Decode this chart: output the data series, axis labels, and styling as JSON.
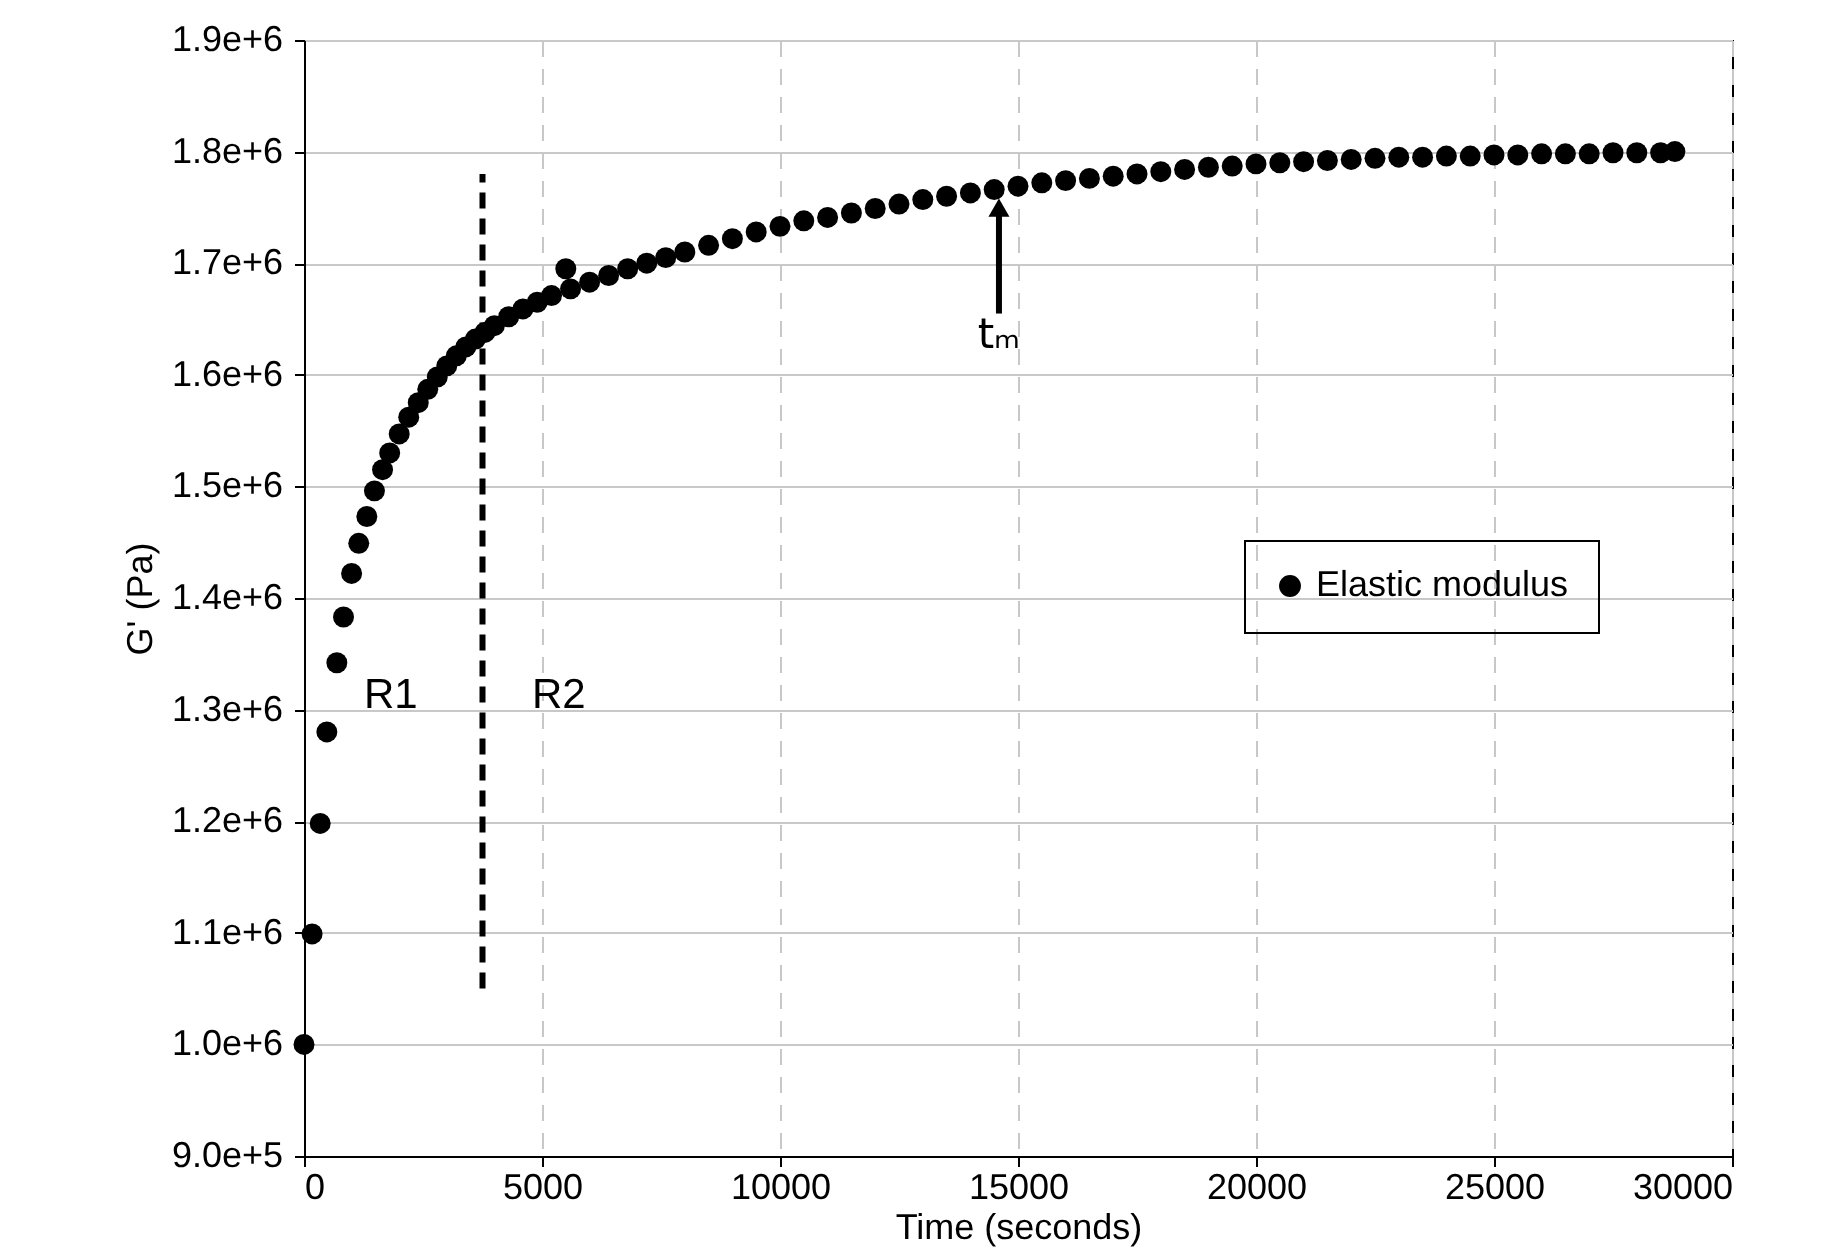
{
  "chart_data": {
    "type": "scatter",
    "xlabel": "Time (seconds)",
    "ylabel": "G' (Pa)",
    "xlim": [
      0,
      30000
    ],
    "xticks": [
      0,
      5000,
      10000,
      15000,
      20000,
      25000,
      30000
    ],
    "ylim": [
      900000,
      1900000
    ],
    "yticks": [
      {
        "value": 900000,
        "label": "9.0e+5"
      },
      {
        "value": 1000000,
        "label": "1.0e+6"
      },
      {
        "value": 1100000,
        "label": "1.1e+6"
      },
      {
        "value": 1200000,
        "label": "1.2e+6"
      },
      {
        "value": 1300000,
        "label": "1.3e+6"
      },
      {
        "value": 1400000,
        "label": "1.4e+6"
      },
      {
        "value": 1500000,
        "label": "1.5e+6"
      },
      {
        "value": 1600000,
        "label": "1.6e+6"
      },
      {
        "value": 1700000,
        "label": "1.7e+6"
      },
      {
        "value": 1800000,
        "label": "1.8e+6"
      },
      {
        "value": 1900000,
        "label": "1.9e+6"
      }
    ],
    "grid": true,
    "legend": "right",
    "series": [
      {
        "name": "Elastic modulus",
        "color": "#000000",
        "marker": "circle",
        "x": [
          0,
          170,
          340,
          480,
          690,
          830,
          1000,
          1150,
          1320,
          1480,
          1650,
          1800,
          2000,
          2200,
          2400,
          2600,
          2800,
          3000,
          3200,
          3400,
          3600,
          3800,
          4000,
          4300,
          4600,
          4900,
          5200,
          5500,
          5600,
          6000,
          6400,
          6800,
          7200,
          7600,
          8000,
          8500,
          9000,
          9500,
          10000,
          10500,
          11000,
          11500,
          12000,
          12500,
          13000,
          13500,
          14000,
          14500,
          15000,
          15500,
          16000,
          16500,
          17000,
          17500,
          18000,
          18500,
          19000,
          19500,
          20000,
          20500,
          21000,
          21500,
          22000,
          22500,
          23000,
          23500,
          24000,
          24500,
          25000,
          25500,
          26000,
          26500,
          27000,
          27500,
          28000,
          28500,
          28800
        ],
        "values": [
          1000000,
          1099000,
          1198000,
          1280000,
          1342000,
          1383000,
          1422000,
          1449000,
          1473000,
          1496000,
          1515000,
          1530000,
          1547000,
          1562000,
          1575000,
          1587000,
          1598000,
          1608000,
          1617000,
          1625000,
          1632000,
          1638000,
          1644000,
          1652000,
          1659000,
          1665000,
          1671000,
          1695000,
          1677000,
          1683000,
          1689000,
          1695000,
          1700000,
          1705000,
          1710000,
          1716000,
          1722000,
          1728000,
          1733000,
          1738000,
          1741000,
          1745000,
          1749000,
          1753000,
          1757000,
          1760000,
          1763000,
          1766000,
          1769000,
          1772000,
          1774000,
          1776000,
          1778000,
          1780000,
          1782000,
          1784000,
          1786000,
          1787000,
          1789000,
          1790000,
          1791000,
          1792000,
          1793000,
          1794000,
          1795000,
          1795000,
          1796000,
          1796000,
          1797000,
          1797000,
          1798000,
          1798000,
          1798000,
          1799000,
          1799000,
          1799000,
          1800000
        ]
      },
      {
        "type": "line",
        "color": "#000000",
        "marker": "none",
        "line_style": "dashed",
        "x": [
          3750,
          3750
        ],
        "values": [
          1050000,
          1780000
        ]
      }
    ],
    "annotations": [
      "R1",
      "R2",
      {
        "text": "tₘ",
        "x": 14600,
        "y": 1766000
      }
    ]
  }
}
